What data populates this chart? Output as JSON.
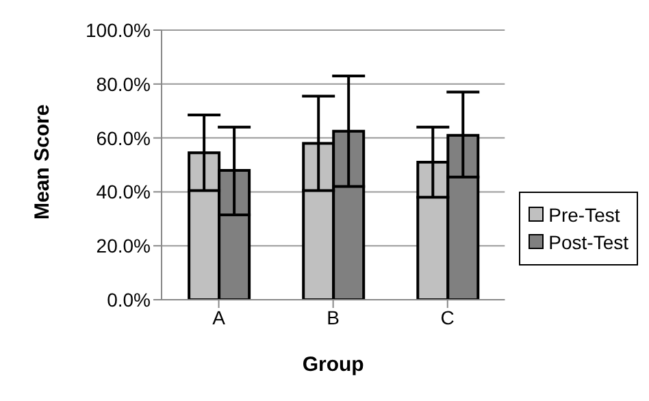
{
  "chart_data": {
    "type": "bar",
    "xlabel": "Group",
    "ylabel": "Mean Score",
    "categories": [
      "A",
      "B",
      "C"
    ],
    "series": [
      {
        "name": "Pre-Test",
        "color": "#c0c0c0",
        "values": [
          54.5,
          58,
          51
        ],
        "errors": [
          [
            40.5,
            68.5
          ],
          [
            40.5,
            75.5
          ],
          [
            38,
            64
          ]
        ]
      },
      {
        "name": "Post-Test",
        "color": "#808080",
        "values": [
          48,
          62.5,
          61
        ],
        "errors": [
          [
            31.5,
            64
          ],
          [
            42,
            83
          ],
          [
            45.5,
            77
          ]
        ]
      }
    ],
    "ylim": [
      0,
      100
    ],
    "yticks": [
      {
        "value": 0,
        "label": "0.0%"
      },
      {
        "value": 20,
        "label": "20.0%"
      },
      {
        "value": 40,
        "label": "40.0%"
      },
      {
        "value": 60,
        "label": "60.0%"
      },
      {
        "value": 80,
        "label": "80.0%"
      },
      {
        "value": 100,
        "label": "100.0%"
      }
    ],
    "grid": "y",
    "legend": "right"
  }
}
